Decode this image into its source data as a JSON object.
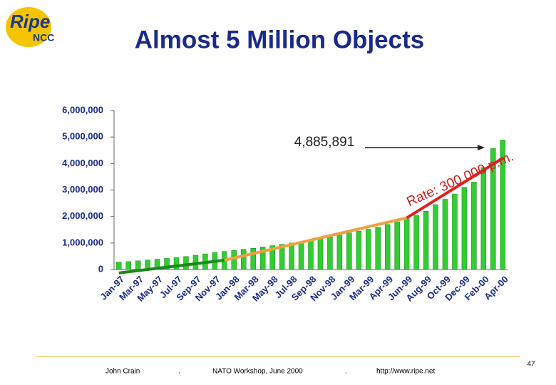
{
  "logo": {
    "main": "Ripe",
    "sub": "NCC"
  },
  "chart_data": {
    "type": "bar",
    "title": "Almost 5 Million Objects",
    "categories": [
      "Jan-97",
      null,
      "Mar-97",
      null,
      "May-97",
      null,
      "Jul-97",
      null,
      "Sep-97",
      null,
      "Nov-97",
      null,
      "Jan-98",
      null,
      "Mar-98",
      null,
      "May-98",
      null,
      "Jul-98",
      null,
      "Sep-98",
      null,
      "Nov-98",
      null,
      "Jan-99",
      null,
      "Mar-99",
      null,
      "Apr-99",
      null,
      "Jun-99",
      null,
      "Aug-99",
      null,
      "Oct-99",
      null,
      "Dec-99",
      null,
      "Feb-00",
      null,
      "Apr-00"
    ],
    "values": [
      280000,
      300000,
      330000,
      360000,
      390000,
      420000,
      450000,
      490000,
      540000,
      590000,
      640000,
      680000,
      720000,
      760000,
      800000,
      850000,
      900000,
      950000,
      1000000,
      1050000,
      1100000,
      1160000,
      1230000,
      1300000,
      1380000,
      1450000,
      1520000,
      1600000,
      1700000,
      1800000,
      1920000,
      2050000,
      2200000,
      2450000,
      2650000,
      2850000,
      3100000,
      3300000,
      3850000,
      4570000,
      4885891
    ],
    "color": "#33cc33",
    "ylim": [
      0,
      6000000
    ],
    "yticks": [
      0,
      {
        "value": 1000000,
        "label": "1,000,000"
      },
      {
        "value": 2000000,
        "label": "2,000,000"
      },
      {
        "value": 3000000,
        "label": "3,000,000"
      },
      {
        "value": 4000000,
        "label": "4,000,000"
      },
      {
        "value": 5000000,
        "label": "5,000,000"
      },
      {
        "value": 6000000,
        "label": "6,000,000"
      }
    ],
    "trend_lines": [
      {
        "color": "#1a8a1a",
        "x": [
          0,
          11
        ],
        "values": [
          -130000,
          350000
        ]
      },
      {
        "color": "#f0a040",
        "x": [
          11,
          30
        ],
        "values": [
          350000,
          1950000
        ]
      },
      {
        "color": "#e02020",
        "x": [
          30,
          40
        ],
        "values": [
          1950000,
          4200000
        ]
      }
    ],
    "annotations": {
      "last_value": "4,885,891",
      "rate": "Rate: 300,000 p.m."
    }
  },
  "footer": {
    "author": "John Crain",
    "sep1": ".",
    "event": "NATO Workshop, June 2000",
    "sep2": ".",
    "url": "http://www.ripe.net",
    "page": "47"
  }
}
